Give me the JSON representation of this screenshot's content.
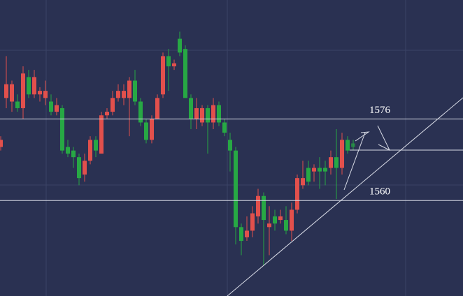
{
  "chart_data": {
    "type": "candlestick",
    "open": [
      1570.5,
      1580.1,
      1579.4,
      1579.4,
      1578.1,
      1584.2,
      1580.8,
      1580.8,
      1580.1,
      1579.4,
      1577.4,
      1578.1,
      1570.5,
      1569.8,
      1568.5,
      1565.1,
      1567.8,
      1571.9,
      1569.2,
      1576.7,
      1577.4,
      1580.1,
      1580.1,
      1580.1,
      1583.5,
      1579.4,
      1575.3,
      1571.9,
      1576.0,
      1580.8,
      1588.3,
      1586.3,
      1591.7,
      1589.7,
      1580.1,
      1576.0,
      1575.3,
      1578.1,
      1575.3,
      1578.7,
      1575.3,
      1571.9,
      1569.8,
      1554.8,
      1552.8,
      1554.1,
      1556.9,
      1560.9,
      1554.8,
      1556.9,
      1556.2,
      1556.2,
      1554.1,
      1558.2,
      1563.0,
      1566.4,
      1565.7,
      1566.4,
      1566.4,
      1566.4,
      1568.5,
      1566.4,
      1571.9,
      1571.2
    ],
    "high": [
      1572.6,
      1588.3,
      1583.5,
      1580.8,
      1586.3,
      1585.6,
      1585.6,
      1582.2,
      1583.5,
      1580.8,
      1580.1,
      1578.7,
      1571.9,
      1570.5,
      1569.2,
      1569.2,
      1572.6,
      1572.6,
      1577.4,
      1578.1,
      1581.5,
      1582.8,
      1582.8,
      1584.2,
      1585.6,
      1580.1,
      1576.0,
      1576.7,
      1580.8,
      1589.0,
      1589.7,
      1587.6,
      1593.1,
      1590.4,
      1580.8,
      1580.1,
      1578.7,
      1578.7,
      1580.1,
      1579.4,
      1576.0,
      1573.3,
      1570.5,
      1555.5,
      1556.9,
      1558.9,
      1562.3,
      1561.6,
      1558.9,
      1558.2,
      1558.2,
      1558.9,
      1559.6,
      1565.1,
      1567.8,
      1567.8,
      1567.1,
      1568.5,
      1567.8,
      1569.8,
      1574.0,
      1573.3,
      1572.6,
      1571.9
    ],
    "low": [
      1569.8,
      1578.1,
      1577.4,
      1577.4,
      1576.0,
      1580.1,
      1580.1,
      1579.4,
      1578.7,
      1576.7,
      1576.7,
      1569.2,
      1568.5,
      1566.4,
      1563.0,
      1563.7,
      1567.1,
      1568.5,
      1569.2,
      1576.0,
      1576.7,
      1579.4,
      1578.7,
      1572.6,
      1578.7,
      1574.6,
      1571.2,
      1571.2,
      1576.0,
      1580.1,
      1581.5,
      1585.6,
      1588.3,
      1580.1,
      1574.0,
      1574.0,
      1574.6,
      1569.2,
      1574.0,
      1574.6,
      1572.6,
      1565.7,
      1551.4,
      1549.3,
      1552.1,
      1552.8,
      1555.5,
      1547.3,
      1549.3,
      1554.1,
      1555.5,
      1553.4,
      1552.1,
      1557.5,
      1562.3,
      1563.0,
      1563.7,
      1562.3,
      1563.0,
      1565.1,
      1560.3,
      1565.1,
      1569.2,
      1569.8
    ],
    "close": [
      1571.9,
      1582.8,
      1582.8,
      1578.1,
      1584.9,
      1580.8,
      1584.2,
      1581.5,
      1581.5,
      1577.4,
      1578.7,
      1569.8,
      1569.2,
      1568.5,
      1564.4,
      1567.8,
      1571.9,
      1569.8,
      1576.7,
      1577.4,
      1580.1,
      1581.5,
      1581.5,
      1583.5,
      1579.4,
      1575.3,
      1571.9,
      1576.0,
      1580.1,
      1588.3,
      1586.3,
      1586.9,
      1589.0,
      1580.1,
      1576.0,
      1578.1,
      1578.1,
      1575.3,
      1578.7,
      1575.3,
      1573.3,
      1569.8,
      1554.8,
      1552.1,
      1554.1,
      1557.5,
      1560.9,
      1556.2,
      1555.5,
      1555.5,
      1556.9,
      1554.1,
      1558.2,
      1564.4,
      1564.4,
      1563.7,
      1566.4,
      1565.7,
      1565.7,
      1568.5,
      1566.4,
      1571.9,
      1569.8,
      1570.5
    ],
    "up_color": "#e2504c",
    "down_color": "#27a844",
    "ylim": [
      1541.3,
      1599.3
    ],
    "levels": [
      1576,
      1560
    ]
  }
}
